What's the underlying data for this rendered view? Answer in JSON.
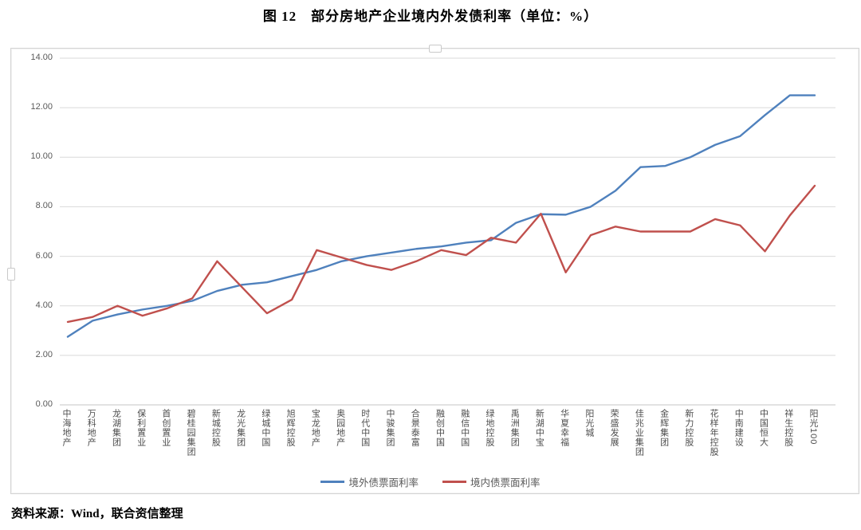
{
  "page": {
    "title": "图 12　部分房地产企业境内外发债利率（单位：%）",
    "source": "资料来源：Wind，联合资信整理"
  },
  "chart_data": {
    "type": "line",
    "title": "图 12 部分房地产企业境内外发债利率（单位：%）",
    "categories": [
      "中海地产",
      "万科地产",
      "龙湖集团",
      "保利置业",
      "首创置业",
      "碧桂园集团",
      "新城控股",
      "龙光集团",
      "绿城中国",
      "旭辉控股",
      "宝龙地产",
      "奥园地产",
      "时代中国",
      "中骏集团",
      "合景泰富",
      "融创中国",
      "融信中国",
      "绿地控股",
      "禹洲集团",
      "新湖中宝",
      "华夏幸福",
      "阳光城",
      "荣盛发展",
      "佳兆业集团",
      "金辉集团",
      "新力控股",
      "花样年控股",
      "中南建设",
      "中国恒大",
      "祥生控股",
      "阳光100"
    ],
    "series": [
      {
        "name": "境外债票面利率",
        "color": "#4F81BD",
        "values": [
          2.75,
          3.4,
          3.65,
          3.85,
          4.0,
          4.2,
          4.6,
          4.85,
          4.95,
          5.2,
          5.45,
          5.8,
          6.0,
          6.15,
          6.3,
          6.4,
          6.55,
          6.65,
          7.35,
          7.7,
          7.68,
          8.0,
          8.65,
          9.6,
          9.65,
          10.0,
          10.5,
          10.85,
          11.7,
          12.5,
          12.5
        ]
      },
      {
        "name": "境内债票面利率",
        "color": "#C0504D",
        "values": [
          3.35,
          3.55,
          4.0,
          3.6,
          3.9,
          4.3,
          5.8,
          4.75,
          3.7,
          4.25,
          6.25,
          5.95,
          5.65,
          5.45,
          5.8,
          6.25,
          6.05,
          6.75,
          6.55,
          7.72,
          5.35,
          6.85,
          7.2,
          7.0,
          7.0,
          7.0,
          7.5,
          7.25,
          6.2,
          7.65,
          8.85
        ]
      }
    ],
    "ylim": [
      0,
      14
    ],
    "ytick_step": 2,
    "ytick_labels": [
      "0.00",
      "2.00",
      "4.00",
      "6.00",
      "8.00",
      "10.00",
      "12.00",
      "14.00"
    ],
    "grid": true,
    "gridline_color": "#d9d9d9",
    "legend_position": "bottom"
  }
}
